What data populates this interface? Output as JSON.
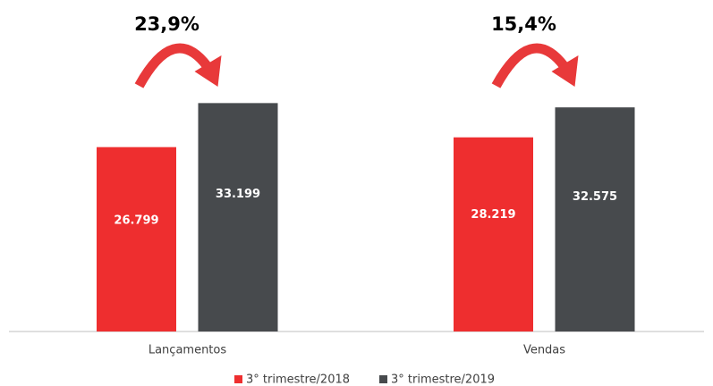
{
  "chart_data": {
    "type": "bar",
    "categories": [
      "Lançamentos",
      "Vendas"
    ],
    "series": [
      {
        "name": "3° trimestre/2018",
        "color": "#ee2e2f",
        "values": [
          26799,
          28219
        ],
        "value_labels": [
          "26.799",
          "28.219"
        ]
      },
      {
        "name": "3° trimestre/2019",
        "color": "#474a4d",
        "values": [
          33199,
          32575
        ],
        "value_labels": [
          "33.199",
          "32.575"
        ]
      }
    ],
    "annotations": [
      "23,9%",
      "15,4%"
    ],
    "ylim": [
      0,
      40000
    ],
    "legend": "bottom"
  }
}
